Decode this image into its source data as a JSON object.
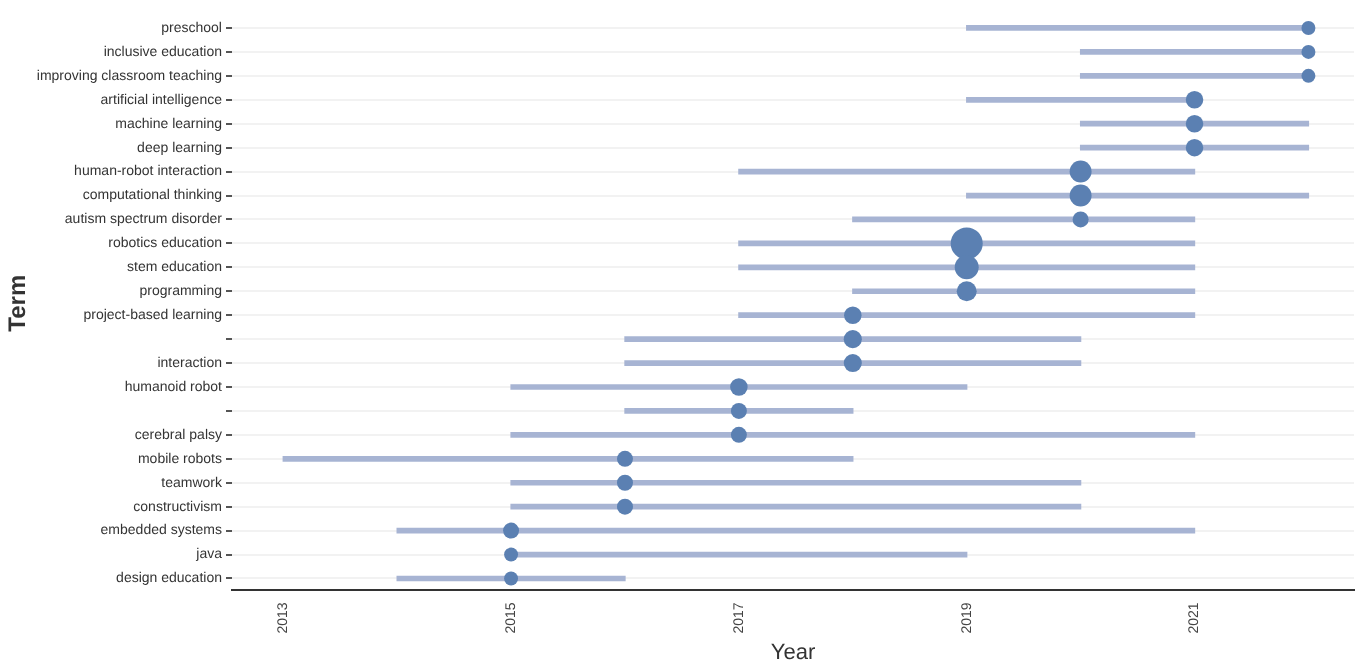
{
  "chart_data": {
    "type": "bar",
    "orientation": "horizontal",
    "xlabel": "Year",
    "ylabel": "Term",
    "categories": [
      "preschool",
      "inclusive education",
      "improving classroom teaching",
      "artificial intelligence",
      "machine learning",
      "deep learning",
      "human-robot interaction",
      "computational thinking",
      "autism spectrum disorder",
      "robotics education",
      "stem education",
      "programming",
      "project-based learning",
      null,
      "interaction",
      "humanoid robot",
      null,
      "cerebral palsy",
      "mobile robots",
      "teamwork",
      "constructivism",
      "embedded systems",
      "java",
      "design education"
    ],
    "series": [
      {
        "color": "#a7b4d3",
        "base": [
          2019,
          2020,
          2020,
          2019,
          2020,
          2020,
          2017,
          2019,
          2018,
          2017,
          2017,
          2018,
          2017,
          2016,
          2016,
          2015,
          2016,
          2015,
          2013,
          2015,
          2015,
          2014,
          2015,
          2014
        ],
        "values": [
          3,
          2,
          2,
          2,
          2,
          2,
          4,
          3,
          3,
          4,
          4,
          3,
          4,
          4,
          4,
          4,
          2,
          6,
          5,
          5,
          5,
          7,
          4,
          2
        ]
      },
      {
        "type": "bubble",
        "color": "#5b80b2",
        "values": [
          2022,
          2022,
          2022,
          2021,
          2021,
          2021,
          2020,
          2020,
          2020,
          2019,
          2019,
          2019,
          2018,
          2018,
          2018,
          2017,
          2017,
          2017,
          2016,
          2016,
          2016,
          2015,
          2015,
          2015
        ],
        "sizes": [
          0.19,
          0.19,
          0.19,
          0.3,
          0.3,
          0.3,
          0.47,
          0.47,
          0.25,
          1,
          0.56,
          0.39,
          0.3,
          0.32,
          0.32,
          0.3,
          0.25,
          0.25,
          0.25,
          0.25,
          0.25,
          0.25,
          0.19,
          0.19
        ]
      }
    ],
    "xlim": [
      2012.55,
      2022.4
    ],
    "xticks": [
      2013,
      2015,
      2017,
      2019,
      2021
    ],
    "grid": "y",
    "legend": false
  }
}
